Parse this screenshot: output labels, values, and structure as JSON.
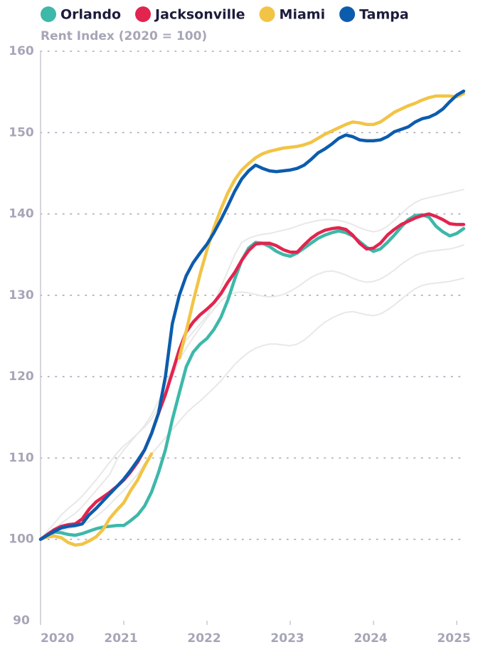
{
  "chart_data": {
    "type": "line",
    "y_label": "Rent Index (2020 = 100)",
    "x": [
      2020,
      2020.083,
      2020.167,
      2020.25,
      2020.333,
      2020.417,
      2020.5,
      2020.583,
      2020.667,
      2020.75,
      2020.833,
      2020.917,
      2021,
      2021.083,
      2021.167,
      2021.25,
      2021.333,
      2021.417,
      2021.5,
      2021.583,
      2021.667,
      2021.75,
      2021.833,
      2021.917,
      2022,
      2022.083,
      2022.167,
      2022.25,
      2022.333,
      2022.417,
      2022.5,
      2022.583,
      2022.667,
      2022.75,
      2022.833,
      2022.917,
      2023,
      2023.083,
      2023.167,
      2023.25,
      2023.333,
      2023.417,
      2023.5,
      2023.583,
      2023.667,
      2023.75,
      2023.833,
      2023.917,
      2024,
      2024.083,
      2024.167,
      2024.25,
      2024.333,
      2024.417,
      2024.5,
      2024.583,
      2024.667,
      2024.75,
      2024.833,
      2024.917,
      2025,
      2025.083
    ],
    "xlim": [
      2020,
      2025.11
    ],
    "xticks": [
      2020,
      2021,
      2022,
      2023,
      2024,
      2025
    ],
    "ylim": [
      90,
      160
    ],
    "yticks": [
      90,
      100,
      110,
      120,
      130,
      140,
      150,
      160
    ],
    "grid": true,
    "background_color": "#e8e8e8",
    "background_series": [
      {
        "values": [
          100,
          100.6,
          101.3,
          102,
          102.6,
          103.2,
          104,
          105,
          106,
          107,
          108,
          109.8,
          111,
          112,
          113,
          114,
          115.3,
          117,
          119,
          121,
          123,
          124.5,
          125.5,
          126.5,
          127.5,
          129,
          131,
          133,
          135,
          136.5,
          137,
          137.3,
          137.5,
          137.6,
          137.8,
          138,
          138.2,
          138.5,
          138.8,
          139,
          139.2,
          139.3,
          139.3,
          139.2,
          139,
          138.7,
          138.3,
          138,
          137.8,
          138,
          138.5,
          139.2,
          140,
          140.8,
          141.4,
          141.8,
          142,
          142.2,
          142.4,
          142.6,
          142.8,
          143
        ]
      },
      {
        "values": [
          100,
          100.3,
          100.7,
          101,
          101.3,
          101.5,
          101.8,
          102.2,
          102.8,
          103.5,
          104.3,
          105.2,
          106,
          107,
          108,
          109.3,
          110.5,
          111.5,
          112.5,
          113.5,
          114.5,
          115.5,
          116.3,
          117,
          117.8,
          118.6,
          119.5,
          120.5,
          121.5,
          122.3,
          123,
          123.5,
          123.8,
          124,
          124,
          123.9,
          123.8,
          124,
          124.5,
          125.2,
          126,
          126.7,
          127.2,
          127.6,
          127.9,
          128,
          127.8,
          127.6,
          127.5,
          127.7,
          128.2,
          128.8,
          129.5,
          130.2,
          130.8,
          131.2,
          131.4,
          131.5,
          131.6,
          131.7,
          131.9,
          132.1
        ]
      },
      {
        "values": [
          100,
          101,
          102,
          103,
          103.8,
          104.5,
          105.3,
          106.3,
          107.3,
          108.4,
          109.5,
          110.6,
          111.5,
          112.2,
          113,
          113.8,
          114.8,
          116.2,
          118,
          120,
          122,
          123.5,
          124.8,
          126,
          127.2,
          128.3,
          129.3,
          130,
          130.3,
          130.4,
          130.3,
          130.1,
          129.9,
          129.8,
          129.9,
          130.1,
          130.5,
          131,
          131.6,
          132.2,
          132.6,
          132.9,
          133,
          132.8,
          132.5,
          132.1,
          131.8,
          131.6,
          131.7,
          132,
          132.5,
          133.1,
          133.8,
          134.4,
          134.9,
          135.2,
          135.4,
          135.5,
          135.6,
          135.7,
          135.9,
          136.2
        ]
      }
    ],
    "series": [
      {
        "name": "Orlando",
        "color": "#3db8a9",
        "values": [
          100,
          100.5,
          100.9,
          100.8,
          100.6,
          100.5,
          100.7,
          101,
          101.3,
          101.5,
          101.6,
          101.7,
          101.7,
          102.3,
          103,
          104.1,
          105.8,
          108.2,
          111,
          114.7,
          118,
          121.2,
          123,
          124,
          124.7,
          125.8,
          127.3,
          129.4,
          132,
          134.3,
          135.8,
          136.5,
          136.4,
          136,
          135.4,
          135,
          134.8,
          135.2,
          135.8,
          136.4,
          137,
          137.4,
          137.7,
          137.9,
          137.7,
          137.3,
          136.6,
          135.9,
          135.4,
          135.7,
          136.5,
          137.4,
          138.4,
          139.3,
          139.8,
          139.9,
          139.6,
          138.5,
          137.8,
          137.3,
          137.6,
          138.2
        ]
      },
      {
        "name": "Jacksonville",
        "color": "#e2244f",
        "values": [
          100,
          100.6,
          101.2,
          101.6,
          101.8,
          101.9,
          102.5,
          103.7,
          104.6,
          105.2,
          105.8,
          106.5,
          107.3,
          108.3,
          109.5,
          111,
          113,
          115.5,
          117.8,
          120.5,
          123.3,
          125.5,
          126.7,
          127.6,
          128.3,
          129.1,
          130.2,
          131.6,
          132.8,
          134.3,
          135.5,
          136.3,
          136.4,
          136.4,
          136.1,
          135.6,
          135.3,
          135.3,
          136.2,
          137,
          137.6,
          138,
          138.2,
          138.3,
          138.1,
          137.4,
          136.4,
          135.7,
          135.8,
          136.4,
          137.4,
          138.1,
          138.7,
          139.1,
          139.5,
          139.8,
          140,
          139.7,
          139.3,
          138.8,
          138.7,
          138.7
        ]
      },
      {
        "name": "Miami",
        "color": "#f2c445",
        "values": [
          100,
          100.3,
          100.4,
          100.2,
          99.6,
          99.3,
          99.4,
          99.8,
          100.3,
          101.2,
          102.6,
          103.6,
          104.5,
          106,
          107.3,
          109,
          110.5,
          null,
          null,
          null,
          122.3,
          125.6,
          129.2,
          132.6,
          135.6,
          138.3,
          140.6,
          142.6,
          144.2,
          145.4,
          146.2,
          146.9,
          147.4,
          147.7,
          147.9,
          148.1,
          148.2,
          148.3,
          148.5,
          148.8,
          149.3,
          149.8,
          150.2,
          150.6,
          151,
          151.3,
          151.2,
          151,
          151,
          151.3,
          151.9,
          152.5,
          152.9,
          153.3,
          153.6,
          154,
          154.3,
          154.5,
          154.5,
          154.5,
          154.4,
          154.8
        ]
      },
      {
        "name": "Tampa",
        "color": "#0c5cad",
        "values": [
          100,
          100.5,
          101,
          101.4,
          101.6,
          101.7,
          101.9,
          103,
          103.8,
          104.7,
          105.6,
          106.5,
          107.4,
          108.5,
          109.7,
          111,
          113,
          115.5,
          120,
          126.5,
          130,
          132.4,
          134,
          135.2,
          136.3,
          137.7,
          139.3,
          141,
          142.8,
          144.3,
          145.3,
          146,
          145.6,
          145.3,
          145.2,
          145.3,
          145.4,
          145.6,
          146,
          146.7,
          147.5,
          148,
          148.6,
          149.3,
          149.7,
          149.5,
          149.1,
          149,
          149,
          149.1,
          149.5,
          150.1,
          150.4,
          150.7,
          151.3,
          151.7,
          151.9,
          152.3,
          152.9,
          153.8,
          154.6,
          155.1
        ]
      }
    ]
  }
}
